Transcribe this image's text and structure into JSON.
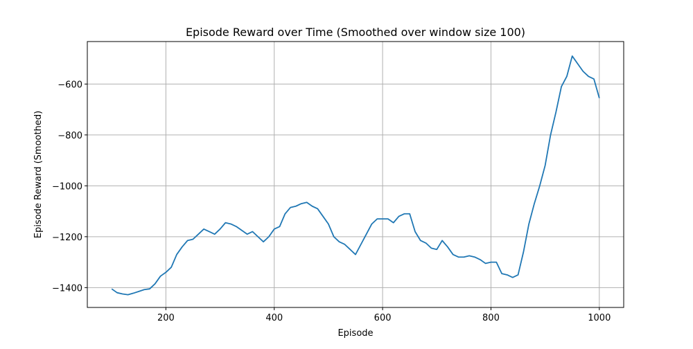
{
  "chart_data": {
    "type": "line",
    "title": "Episode Reward over Time (Smoothed over window size 100)",
    "x_label": "Episode",
    "y_label": "Episode Reward (Smoothed)",
    "x": [
      100,
      110,
      120,
      130,
      140,
      150,
      160,
      170,
      180,
      190,
      200,
      210,
      220,
      230,
      240,
      250,
      260,
      270,
      280,
      290,
      300,
      310,
      320,
      330,
      340,
      350,
      360,
      370,
      380,
      390,
      400,
      410,
      420,
      430,
      440,
      450,
      460,
      470,
      480,
      490,
      500,
      510,
      520,
      530,
      540,
      550,
      560,
      570,
      580,
      590,
      600,
      610,
      620,
      630,
      640,
      650,
      660,
      670,
      680,
      690,
      700,
      710,
      720,
      730,
      740,
      750,
      760,
      770,
      780,
      790,
      800,
      810,
      820,
      830,
      840,
      850,
      860,
      870,
      880,
      890,
      900,
      910,
      920,
      930,
      940,
      950,
      960,
      970,
      980,
      990,
      1000
    ],
    "series": [
      {
        "color": "#1f77b4",
        "values": [
          -1405,
          -1420,
          -1425,
          -1428,
          -1422,
          -1415,
          -1408,
          -1405,
          -1385,
          -1355,
          -1340,
          -1320,
          -1270,
          -1240,
          -1215,
          -1210,
          -1190,
          -1170,
          -1180,
          -1190,
          -1170,
          -1145,
          -1150,
          -1160,
          -1175,
          -1190,
          -1180,
          -1200,
          -1220,
          -1200,
          -1170,
          -1160,
          -1110,
          -1085,
          -1080,
          -1070,
          -1065,
          -1080,
          -1090,
          -1120,
          -1150,
          -1200,
          -1220,
          -1230,
          -1250,
          -1270,
          -1230,
          -1190,
          -1150,
          -1130,
          -1130,
          -1130,
          -1145,
          -1120,
          -1110,
          -1110,
          -1180,
          -1215,
          -1225,
          -1245,
          -1250,
          -1215,
          -1240,
          -1270,
          -1280,
          -1280,
          -1275,
          -1280,
          -1290,
          -1305,
          -1300,
          -1300,
          -1345,
          -1350,
          -1360,
          -1350,
          -1260,
          -1150,
          -1070,
          -1000,
          -920,
          -800,
          -710,
          -610,
          -570,
          -490,
          -520,
          -550,
          -570,
          -580,
          -655
        ]
      }
    ],
    "xlim": [
      55,
      1045
    ],
    "ylim": [
      -1478,
      -433
    ],
    "xticks": [
      200,
      400,
      600,
      800,
      1000
    ],
    "yticks": [
      {
        "value": -1400,
        "label": "−1400"
      },
      {
        "value": -1200,
        "label": "−1200"
      },
      {
        "value": -1000,
        "label": "−1000"
      },
      {
        "value": -800,
        "label": "−800"
      },
      {
        "value": -600,
        "label": "−600"
      }
    ],
    "grid": true
  }
}
